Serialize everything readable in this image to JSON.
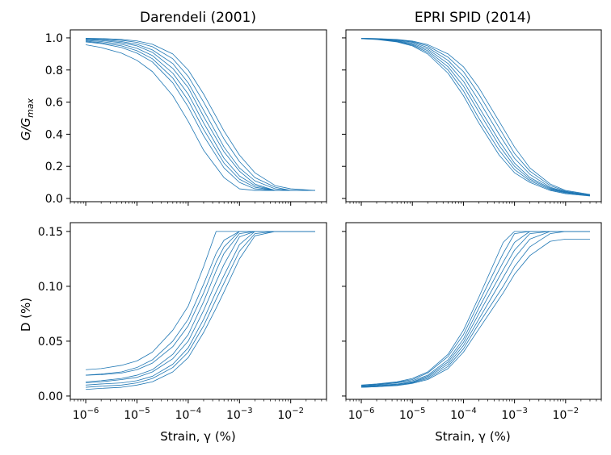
{
  "chart_data": [
    {
      "type": "line",
      "panel": "top-left",
      "title": "Darendeli (2001)",
      "ylabel_main": "G/G",
      "ylabel_sub": "max",
      "xlabel": "",
      "xscale": "log",
      "xlim": [
        5e-07,
        0.05
      ],
      "ylim": [
        -0.02,
        1.05
      ],
      "yticks": [
        0.0,
        0.2,
        0.4,
        0.6,
        0.8,
        1.0
      ],
      "ytick_labels": [
        "0.0",
        "0.2",
        "0.4",
        "0.6",
        "0.8",
        "1.0"
      ],
      "color": "#1f77b4",
      "x": [
        1e-06,
        2e-06,
        5e-06,
        1e-05,
        2e-05,
        5e-05,
        0.0001,
        0.0002,
        0.0005,
        0.001,
        0.002,
        0.005,
        0.01,
        0.03
      ],
      "series": [
        {
          "values": [
            0.957,
            0.94,
            0.905,
            0.86,
            0.79,
            0.64,
            0.48,
            0.3,
            0.13,
            0.06,
            0.05,
            0.05,
            0.05,
            0.05
          ]
        },
        {
          "values": [
            0.975,
            0.965,
            0.94,
            0.905,
            0.85,
            0.72,
            0.57,
            0.39,
            0.19,
            0.1,
            0.06,
            0.05,
            0.05,
            0.05
          ]
        },
        {
          "values": [
            0.98,
            0.97,
            0.95,
            0.92,
            0.87,
            0.75,
            0.61,
            0.43,
            0.22,
            0.12,
            0.07,
            0.05,
            0.05,
            0.05
          ]
        },
        {
          "values": [
            0.985,
            0.977,
            0.96,
            0.935,
            0.89,
            0.78,
            0.65,
            0.47,
            0.25,
            0.14,
            0.08,
            0.05,
            0.05,
            0.05
          ]
        },
        {
          "values": [
            0.99,
            0.984,
            0.97,
            0.95,
            0.91,
            0.81,
            0.69,
            0.51,
            0.29,
            0.17,
            0.09,
            0.05,
            0.05,
            0.05
          ]
        },
        {
          "values": [
            0.993,
            0.988,
            0.977,
            0.96,
            0.925,
            0.84,
            0.72,
            0.55,
            0.32,
            0.19,
            0.11,
            0.06,
            0.05,
            0.05
          ]
        },
        {
          "values": [
            0.996,
            0.993,
            0.985,
            0.972,
            0.945,
            0.87,
            0.76,
            0.6,
            0.37,
            0.23,
            0.13,
            0.07,
            0.05,
            0.05
          ]
        },
        {
          "values": [
            0.998,
            0.996,
            0.99,
            0.981,
            0.96,
            0.9,
            0.8,
            0.65,
            0.42,
            0.27,
            0.16,
            0.08,
            0.06,
            0.05
          ]
        }
      ]
    },
    {
      "type": "line",
      "panel": "top-right",
      "title": "EPRI SPID (2014)",
      "xlabel": "",
      "xscale": "log",
      "xlim": [
        5e-07,
        0.05
      ],
      "ylim": [
        -0.02,
        1.05
      ],
      "color": "#1f77b4",
      "x": [
        1e-06,
        2e-06,
        5e-06,
        1e-05,
        2e-05,
        5e-05,
        0.0001,
        0.0002,
        0.0005,
        0.001,
        0.002,
        0.005,
        0.01,
        0.03
      ],
      "series": [
        {
          "values": [
            0.995,
            0.99,
            0.975,
            0.95,
            0.9,
            0.78,
            0.64,
            0.47,
            0.27,
            0.16,
            0.1,
            0.05,
            0.03,
            0.015
          ]
        },
        {
          "values": [
            0.995,
            0.991,
            0.978,
            0.955,
            0.91,
            0.8,
            0.67,
            0.5,
            0.3,
            0.18,
            0.11,
            0.055,
            0.035,
            0.018
          ]
        },
        {
          "values": [
            0.996,
            0.992,
            0.98,
            0.96,
            0.92,
            0.82,
            0.7,
            0.54,
            0.33,
            0.2,
            0.12,
            0.06,
            0.037,
            0.019
          ]
        },
        {
          "values": [
            0.996,
            0.993,
            0.983,
            0.966,
            0.93,
            0.84,
            0.73,
            0.57,
            0.36,
            0.22,
            0.13,
            0.065,
            0.04,
            0.02
          ]
        },
        {
          "values": [
            0.997,
            0.994,
            0.986,
            0.972,
            0.94,
            0.86,
            0.76,
            0.61,
            0.4,
            0.25,
            0.15,
            0.07,
            0.042,
            0.021
          ]
        },
        {
          "values": [
            0.997,
            0.995,
            0.988,
            0.976,
            0.95,
            0.88,
            0.79,
            0.65,
            0.44,
            0.28,
            0.17,
            0.08,
            0.045,
            0.022
          ]
        },
        {
          "values": [
            0.998,
            0.996,
            0.99,
            0.98,
            0.958,
            0.9,
            0.82,
            0.69,
            0.48,
            0.32,
            0.19,
            0.09,
            0.05,
            0.025
          ]
        }
      ]
    },
    {
      "type": "line",
      "panel": "bottom-left",
      "title": "",
      "ylabel": "D (%)",
      "xlabel": "Strain, γ (%)",
      "xscale": "log",
      "xlim": [
        5e-07,
        0.05
      ],
      "ylim": [
        -0.003,
        0.158
      ],
      "yticks": [
        0.0,
        0.05,
        0.1,
        0.15
      ],
      "ytick_labels": [
        "0.00",
        "0.05",
        "0.10",
        "0.15"
      ],
      "xticks": [
        1e-06,
        1e-05,
        0.0001,
        0.001,
        0.01
      ],
      "xtick_exponents": [
        "−6",
        "−5",
        "−4",
        "−3",
        "−2"
      ],
      "xtick_base": "10",
      "color": "#1f77b4",
      "x": [
        1e-06,
        2e-06,
        5e-06,
        1e-05,
        2e-05,
        5e-05,
        0.0001,
        0.0002,
        0.00035,
        0.0005,
        0.001,
        0.002,
        0.005,
        0.01,
        0.03
      ],
      "series": [
        {
          "values": [
            0.024,
            0.025,
            0.028,
            0.032,
            0.04,
            0.06,
            0.082,
            0.118,
            0.15,
            0.15,
            0.15,
            0.15,
            0.15,
            0.15,
            0.15
          ]
        },
        {
          "values": [
            0.019,
            0.02,
            0.022,
            0.026,
            0.033,
            0.05,
            0.07,
            0.102,
            0.13,
            0.142,
            0.15,
            0.15,
            0.15,
            0.15,
            0.15
          ]
        },
        {
          "values": [
            0.019,
            0.0195,
            0.021,
            0.024,
            0.03,
            0.045,
            0.064,
            0.094,
            0.122,
            0.136,
            0.15,
            0.15,
            0.15,
            0.15,
            0.15
          ]
        },
        {
          "values": [
            0.013,
            0.014,
            0.016,
            0.019,
            0.024,
            0.038,
            0.056,
            0.086,
            0.114,
            0.13,
            0.148,
            0.15,
            0.15,
            0.15,
            0.15
          ]
        },
        {
          "values": [
            0.012,
            0.013,
            0.015,
            0.017,
            0.022,
            0.034,
            0.05,
            0.078,
            0.104,
            0.12,
            0.145,
            0.15,
            0.15,
            0.15,
            0.15
          ]
        },
        {
          "values": [
            0.01,
            0.011,
            0.012,
            0.014,
            0.018,
            0.029,
            0.044,
            0.07,
            0.095,
            0.11,
            0.138,
            0.15,
            0.15,
            0.15,
            0.15
          ]
        },
        {
          "values": [
            0.008,
            0.009,
            0.01,
            0.012,
            0.016,
            0.026,
            0.04,
            0.064,
            0.088,
            0.103,
            0.132,
            0.148,
            0.15,
            0.15,
            0.15
          ]
        },
        {
          "values": [
            0.006,
            0.007,
            0.008,
            0.01,
            0.013,
            0.022,
            0.035,
            0.058,
            0.08,
            0.095,
            0.125,
            0.146,
            0.15,
            0.15,
            0.15
          ]
        }
      ]
    },
    {
      "type": "line",
      "panel": "bottom-right",
      "title": "",
      "xlabel": "Strain, γ (%)",
      "xscale": "log",
      "xlim": [
        5e-07,
        0.05
      ],
      "ylim": [
        -0.003,
        0.158
      ],
      "xticks": [
        1e-06,
        1e-05,
        0.0001,
        0.001,
        0.01
      ],
      "xtick_exponents": [
        "−6",
        "−5",
        "−4",
        "−3",
        "−2"
      ],
      "xtick_base": "10",
      "color": "#1f77b4",
      "x": [
        1e-06,
        2e-06,
        5e-06,
        1e-05,
        2e-05,
        5e-05,
        0.0001,
        0.0002,
        0.0006,
        0.001,
        0.002,
        0.005,
        0.01,
        0.03
      ],
      "series": [
        {
          "values": [
            0.01,
            0.011,
            0.013,
            0.016,
            0.022,
            0.038,
            0.06,
            0.09,
            0.14,
            0.15,
            0.15,
            0.15,
            0.15,
            0.15
          ]
        },
        {
          "values": [
            0.0095,
            0.0105,
            0.0125,
            0.015,
            0.021,
            0.036,
            0.056,
            0.085,
            0.13,
            0.148,
            0.15,
            0.15,
            0.15,
            0.15
          ]
        },
        {
          "values": [
            0.009,
            0.01,
            0.012,
            0.014,
            0.019,
            0.033,
            0.052,
            0.08,
            0.122,
            0.14,
            0.15,
            0.15,
            0.15,
            0.15
          ]
        },
        {
          "values": [
            0.009,
            0.0095,
            0.011,
            0.013,
            0.018,
            0.031,
            0.049,
            0.075,
            0.115,
            0.133,
            0.148,
            0.15,
            0.15,
            0.15
          ]
        },
        {
          "values": [
            0.0085,
            0.009,
            0.0105,
            0.0125,
            0.017,
            0.029,
            0.046,
            0.07,
            0.108,
            0.126,
            0.143,
            0.15,
            0.15,
            0.15
          ]
        },
        {
          "values": [
            0.008,
            0.0085,
            0.01,
            0.012,
            0.016,
            0.027,
            0.043,
            0.066,
            0.1,
            0.118,
            0.136,
            0.148,
            0.15,
            0.15
          ]
        },
        {
          "values": [
            0.008,
            0.0085,
            0.0095,
            0.0115,
            0.015,
            0.025,
            0.04,
            0.061,
            0.094,
            0.111,
            0.128,
            0.141,
            0.143,
            0.143
          ]
        }
      ]
    }
  ]
}
